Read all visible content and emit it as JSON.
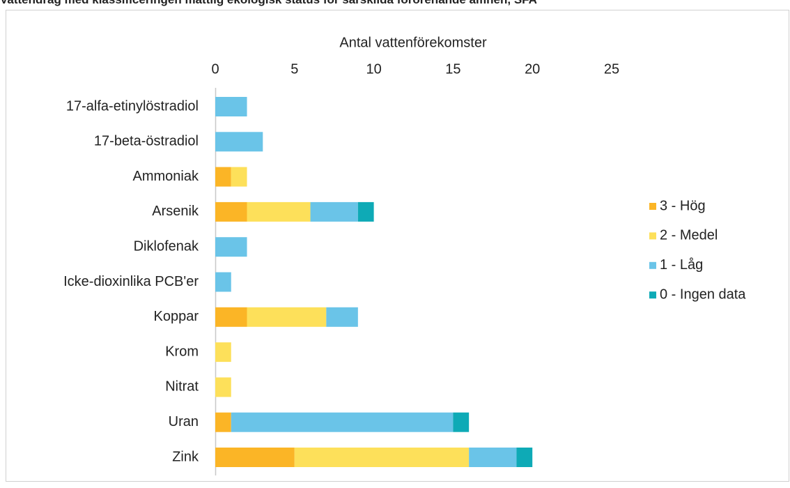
{
  "chart_data": {
    "type": "stacked_barh",
    "title": "Vattendrag med klassificeringen måttlig ekologisk status för särskilda förorenande ämnen, SFA",
    "xlabel": "Antal vattenförekomster",
    "categories": [
      "17-alfa-etinylöstradiol",
      "17-beta-östradiol",
      "Ammoniak",
      "Arsenik",
      "Diklofenak",
      "Icke-dioxinlika PCB'er",
      "Koppar",
      "Krom",
      "Nitrat",
      "Uran",
      "Zink"
    ],
    "series": [
      {
        "name": "3 - Hög",
        "color": "#fbb526",
        "values": [
          0,
          0,
          1,
          2,
          0,
          0,
          2,
          0,
          0,
          1,
          5
        ]
      },
      {
        "name": "2 - Medel",
        "color": "#fde05a",
        "values": [
          0,
          0,
          1,
          4,
          0,
          0,
          5,
          1,
          1,
          0,
          11
        ]
      },
      {
        "name": "1 - Låg",
        "color": "#6ac4e8",
        "values": [
          2,
          3,
          0,
          3,
          2,
          1,
          2,
          0,
          0,
          14,
          3
        ]
      },
      {
        "name": "0 - Ingen data",
        "color": "#0eaab6",
        "values": [
          0,
          0,
          0,
          1,
          0,
          0,
          0,
          0,
          0,
          1,
          1
        ]
      }
    ],
    "xlim": [
      0,
      25
    ],
    "xticks": [
      0,
      5,
      10,
      15,
      20,
      25
    ],
    "legend": "right",
    "xaxis": "top"
  }
}
